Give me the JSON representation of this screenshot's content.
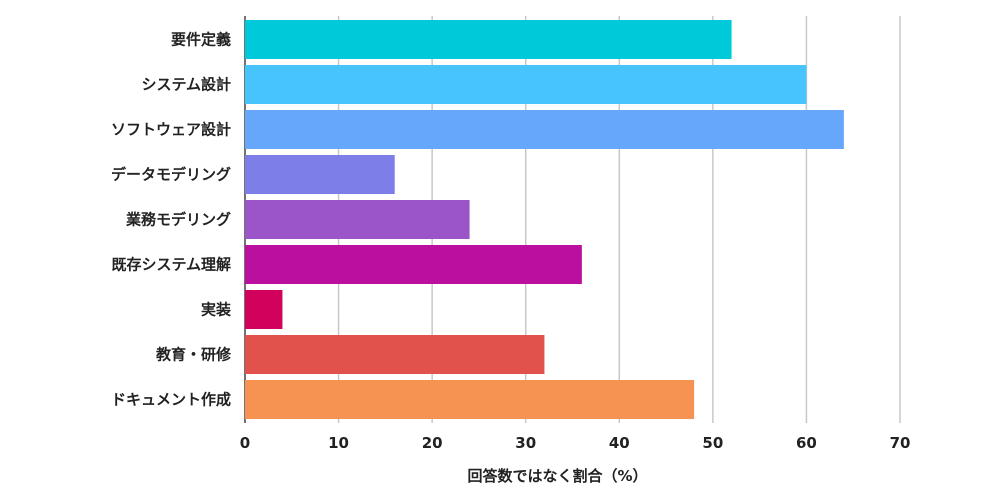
{
  "chart_data": {
    "type": "bar",
    "orientation": "horizontal",
    "categories": [
      "要件定義",
      "システム設計",
      "ソフトウェア設計",
      "データモデリング",
      "業務モデリング",
      "既存システム理解",
      "実装",
      "教育・研修",
      "ドキュメント作成"
    ],
    "values": [
      52,
      60,
      64,
      16,
      24,
      36,
      4,
      32,
      48
    ],
    "colors": [
      "#00c9d9",
      "#47c4fb",
      "#66a6fb",
      "#7e7ee8",
      "#9b55c9",
      "#bb109f",
      "#d2015c",
      "#e0524b",
      "#f69353"
    ],
    "xlabel": "回答数ではなく割合（%）",
    "xlim": [
      0,
      70
    ],
    "xticks": [
      0,
      10,
      20,
      30,
      40,
      50,
      60,
      70
    ],
    "grid": "vertical"
  }
}
